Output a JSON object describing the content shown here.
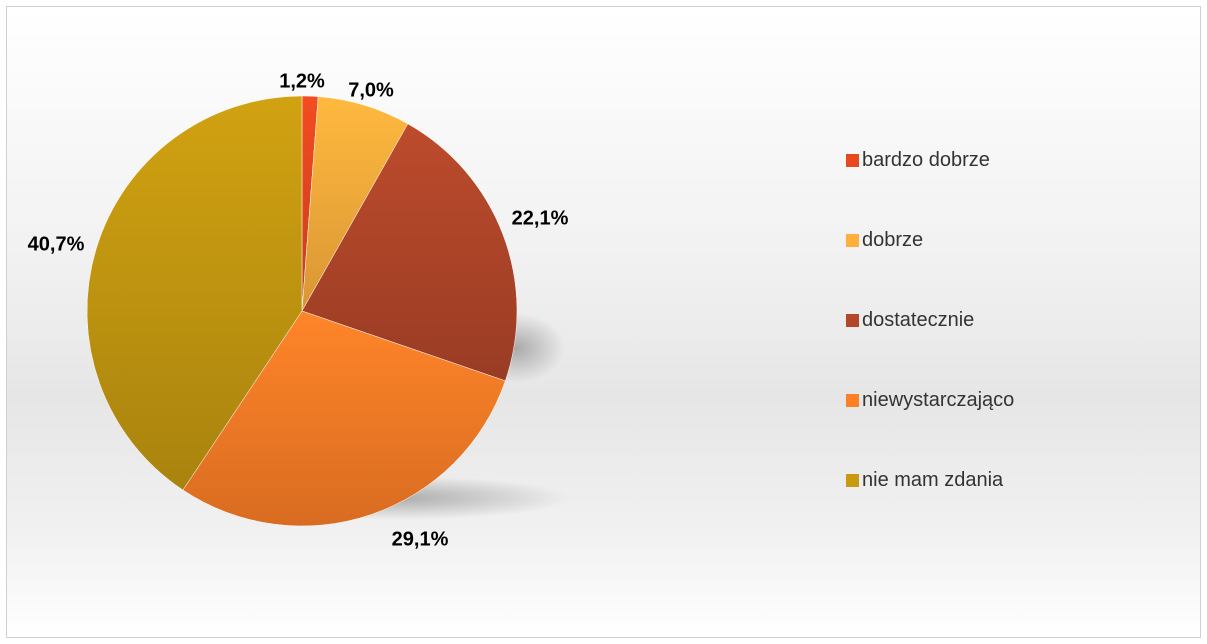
{
  "chart_data": {
    "type": "pie",
    "categories": [
      "bardzo dobrze",
      "dobrze",
      "dostatecznie",
      "niewystarczająco",
      "nie mam zdania"
    ],
    "values": [
      1.2,
      7.0,
      22.1,
      29.1,
      40.7
    ],
    "labels": [
      "1,2%",
      "7,0%",
      "22,1%",
      "29,1%",
      "40,7%"
    ],
    "colors": [
      "#e8481e",
      "#ffb03c",
      "#b4472a",
      "#ff7f27",
      "#c79a10"
    ],
    "legend_position": "right",
    "start_angle": "12 o'clock, clockwise"
  }
}
